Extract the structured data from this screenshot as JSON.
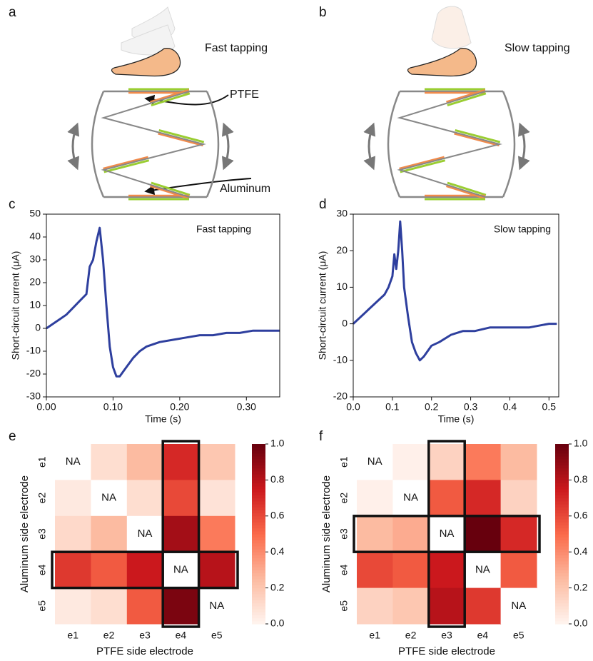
{
  "diagrams": [
    {
      "panel_label": "a",
      "caption": "Fast tapping",
      "labels": [
        "PTFE",
        "Aluminum"
      ]
    },
    {
      "panel_label": "b",
      "caption": "Slow tapping"
    }
  ],
  "chart_data": [
    {
      "type": "line",
      "panel_label": "c",
      "annotation": "Fast tapping",
      "xlabel": "Time (s)",
      "ylabel": "Short-circuit current (μA)",
      "x": [
        0,
        0.01,
        0.02,
        0.03,
        0.04,
        0.05,
        0.06,
        0.065,
        0.07,
        0.075,
        0.08,
        0.085,
        0.09,
        0.095,
        0.1,
        0.105,
        0.11,
        0.12,
        0.13,
        0.14,
        0.15,
        0.17,
        0.19,
        0.21,
        0.23,
        0.25,
        0.27,
        0.29,
        0.31,
        0.33,
        0.35
      ],
      "series": [
        {
          "color": "#2e3f9e",
          "values": [
            0,
            2,
            4,
            6,
            9,
            12,
            15,
            27,
            30,
            38,
            44,
            30,
            10,
            -8,
            -17,
            -21,
            -21,
            -17,
            -13,
            -10,
            -8,
            -6,
            -5,
            -4,
            -3,
            -3,
            -2,
            -2,
            -1,
            -1,
            -1
          ]
        }
      ],
      "xlim": [
        0,
        0.35
      ],
      "xticks": [
        {
          "value": 0,
          "label": "0.00"
        },
        {
          "value": 0.1,
          "label": "0.10"
        },
        {
          "value": 0.2,
          "label": "0.20"
        },
        {
          "value": 0.3,
          "label": "0.30"
        }
      ],
      "ylim": [
        -30,
        50
      ],
      "yticks": [
        -30,
        -20,
        -10,
        0,
        10,
        20,
        30,
        40,
        50
      ]
    },
    {
      "type": "line",
      "panel_label": "d",
      "annotation": "Slow tapping",
      "xlabel": "Time (s)",
      "ylabel": "Short-circuit current (μA)",
      "x": [
        0,
        0.02,
        0.04,
        0.06,
        0.08,
        0.09,
        0.1,
        0.105,
        0.11,
        0.115,
        0.12,
        0.125,
        0.13,
        0.14,
        0.15,
        0.16,
        0.17,
        0.18,
        0.2,
        0.22,
        0.25,
        0.28,
        0.31,
        0.35,
        0.4,
        0.45,
        0.5,
        0.52
      ],
      "series": [
        {
          "color": "#2e3f9e",
          "values": [
            0,
            2,
            4,
            6,
            8,
            10,
            13,
            19,
            15,
            20,
            28,
            20,
            10,
            2,
            -5,
            -8,
            -10,
            -9,
            -6,
            -5,
            -3,
            -2,
            -2,
            -1,
            -1,
            -1,
            0,
            0
          ]
        }
      ],
      "xlim": [
        0,
        0.525
      ],
      "xticks": [
        {
          "value": 0,
          "label": "0.0"
        },
        0.1,
        0.2,
        0.3,
        0.4,
        0.5
      ],
      "ylim": [
        -20,
        30
      ],
      "yticks": [
        -20,
        -10,
        0,
        10,
        20,
        30
      ]
    },
    {
      "type": "heatmap",
      "panel_label": "e",
      "xlabel": "PTFE side electrode",
      "ylabel": "Aluminum side electrode",
      "na_label": "NA",
      "x_categories": [
        "e1",
        "e2",
        "e3",
        "e4",
        "e5"
      ],
      "y_categories": [
        "e1",
        "e2",
        "e3",
        "e4",
        "e5"
      ],
      "values": [
        [
          null,
          0.1,
          0.25,
          0.7,
          0.2
        ],
        [
          0.05,
          null,
          0.1,
          0.6,
          0.08
        ],
        [
          0.12,
          0.25,
          null,
          0.85,
          0.45
        ],
        [
          0.65,
          0.55,
          0.75,
          null,
          0.8
        ],
        [
          0.05,
          0.1,
          0.55,
          0.95,
          null
        ]
      ],
      "highlight": {
        "row": 3,
        "column": 3
      },
      "cmap": "Reds",
      "colorbar": {
        "ylim": [
          0,
          1
        ],
        "yticks": [
          {
            "value": 0,
            "label": "0.0"
          },
          0.2,
          0.4,
          0.6,
          0.8,
          {
            "value": 1,
            "label": "1.0"
          }
        ]
      }
    },
    {
      "type": "heatmap",
      "panel_label": "f",
      "xlabel": "PTFE side electrode",
      "ylabel": "Aluminum side electrode",
      "na_label": "NA",
      "x_categories": [
        "e1",
        "e2",
        "e3",
        "e4",
        "e5"
      ],
      "y_categories": [
        "e1",
        "e2",
        "e3",
        "e4",
        "e5"
      ],
      "values": [
        [
          null,
          0.02,
          0.15,
          0.45,
          0.25
        ],
        [
          0.02,
          null,
          0.55,
          0.7,
          0.15
        ],
        [
          0.25,
          0.3,
          null,
          1.0,
          0.7
        ],
        [
          0.6,
          0.55,
          0.75,
          null,
          0.55
        ],
        [
          0.15,
          0.2,
          0.8,
          0.65,
          null
        ]
      ],
      "highlight": {
        "row": 2,
        "column": 2
      },
      "cmap": "Reds",
      "colorbar": {
        "ylim": [
          0,
          1
        ],
        "yticks": [
          {
            "value": 0,
            "label": "0.0"
          },
          0.2,
          0.4,
          0.6,
          0.8,
          {
            "value": 1,
            "label": "1.0"
          }
        ]
      }
    }
  ]
}
